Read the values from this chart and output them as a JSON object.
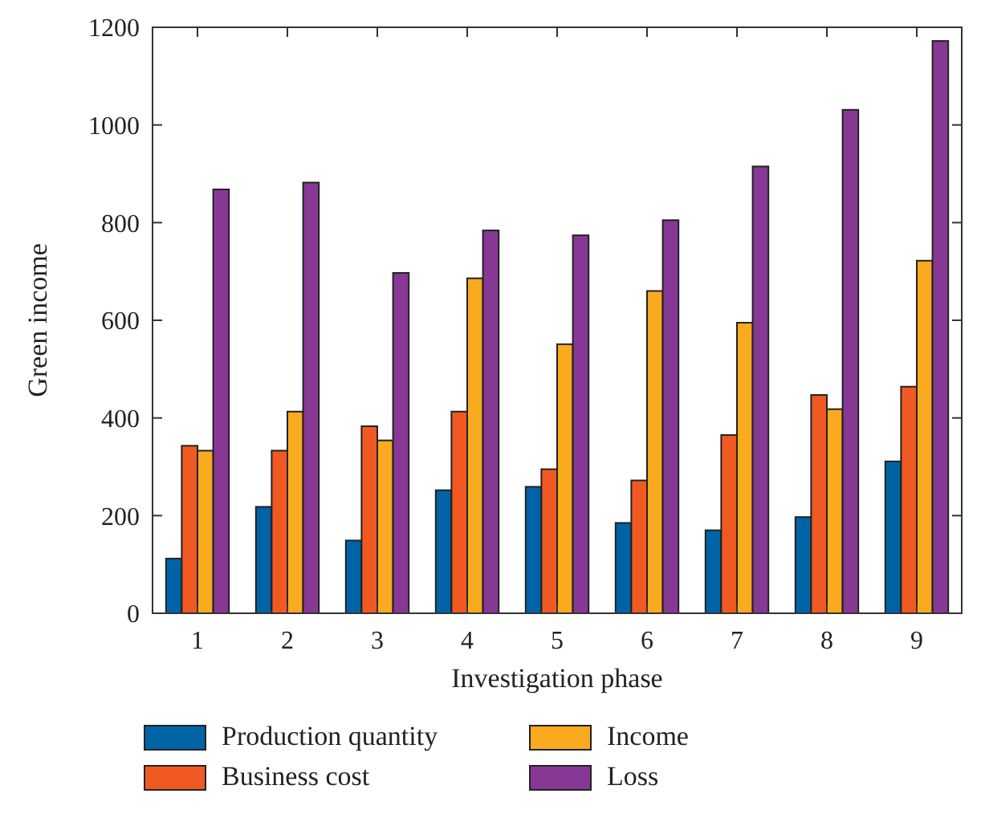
{
  "chart_data": {
    "type": "bar",
    "xlabel": "Investigation phase",
    "ylabel": "Green income",
    "categories": [
      "1",
      "2",
      "3",
      "4",
      "5",
      "6",
      "7",
      "8",
      "9"
    ],
    "series": [
      {
        "name": "Production quantity",
        "color": "#0063a6",
        "values": [
          112,
          218,
          149,
          252,
          259,
          185,
          170,
          197,
          311
        ]
      },
      {
        "name": "Business cost",
        "color": "#f05a22",
        "values": [
          343,
          333,
          383,
          413,
          295,
          272,
          365,
          447,
          464
        ]
      },
      {
        "name": "Income",
        "color": "#f9aa1f",
        "values": [
          333,
          413,
          354,
          686,
          551,
          660,
          595,
          418,
          722
        ]
      },
      {
        "name": "Loss",
        "color": "#873894",
        "values": [
          868,
          882,
          697,
          784,
          774,
          805,
          915,
          1031,
          1172
        ]
      }
    ],
    "ylim": [
      0,
      1200
    ],
    "yticks": [
      0,
      200,
      400,
      600,
      800,
      1000,
      1200
    ],
    "grid": false,
    "legend": "bottom"
  }
}
